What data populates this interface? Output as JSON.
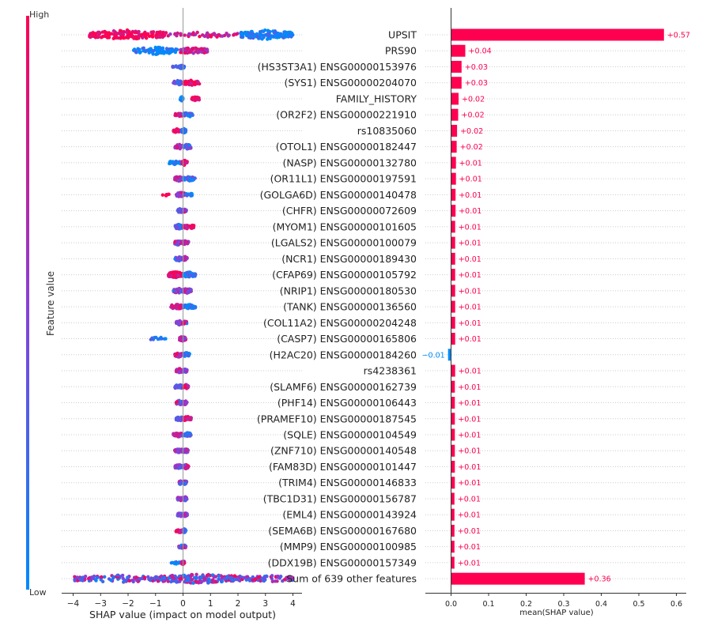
{
  "chart_data": [
    {
      "type": "scatter",
      "subtype": "shap-beeswarm",
      "xlabel": "SHAP value (impact on model output)",
      "xlim": [
        -4.4,
        4.4
      ],
      "xticks": [
        -4,
        -3,
        -2,
        -1,
        0,
        1,
        2,
        3,
        4
      ],
      "colorbar": {
        "label": "Feature value",
        "high_label": "High",
        "low_label": "Low",
        "high_color": "#ff0052",
        "low_color": "#008bfb"
      },
      "features": [
        {
          "name": "UPSIT",
          "clusters": [
            [
              -3.4,
              -0.6,
              160,
              1
            ],
            [
              -0.6,
              2.0,
              50,
              0.8
            ],
            [
              2.1,
              4.0,
              150,
              0.05
            ]
          ]
        },
        {
          "name": "PRS90",
          "clusters": [
            [
              -1.8,
              -0.2,
              80,
              0.05
            ],
            [
              -0.1,
              0.9,
              70,
              0.75
            ]
          ]
        },
        {
          "name": "(HS3ST3A1) ENSG00000153976",
          "clusters": [
            [
              -0.45,
              -0.2,
              6,
              0.1
            ],
            [
              -0.15,
              0.05,
              30,
              0.2
            ]
          ]
        },
        {
          "name": "(SYS1) ENSG00000204070",
          "clusters": [
            [
              -0.35,
              -0.05,
              40,
              0.35
            ],
            [
              0.0,
              0.6,
              45,
              0.95
            ]
          ]
        },
        {
          "name": "FAMILY_HISTORY",
          "clusters": [
            [
              -0.1,
              0.0,
              30,
              0.05
            ],
            [
              0.3,
              0.6,
              25,
              1
            ]
          ]
        },
        {
          "name": "(OR2F2) ENSG00000221910",
          "clusters": [
            [
              -0.3,
              0.0,
              20,
              0.8
            ],
            [
              0.0,
              0.35,
              40,
              0.2
            ]
          ]
        },
        {
          "name": "rs10835060",
          "clusters": [
            [
              -0.35,
              -0.1,
              20,
              0.95
            ],
            [
              -0.05,
              0.1,
              40,
              0.05
            ]
          ]
        },
        {
          "name": "(OTOL1) ENSG00000182447",
          "clusters": [
            [
              -0.3,
              0.0,
              40,
              0.7
            ],
            [
              0.0,
              0.3,
              40,
              0.3
            ]
          ]
        },
        {
          "name": "(NASP) ENSG00000132780",
          "clusters": [
            [
              -0.5,
              -0.05,
              25,
              0.05
            ],
            [
              -0.05,
              0.15,
              40,
              0.9
            ]
          ]
        },
        {
          "name": "(OR11L1) ENSG00000197591",
          "clusters": [
            [
              -0.3,
              0.0,
              40,
              0.6
            ],
            [
              0.0,
              0.45,
              40,
              0.2
            ]
          ]
        },
        {
          "name": "(GOLGA6D) ENSG00000140478",
          "clusters": [
            [
              -0.8,
              -0.5,
              6,
              1
            ],
            [
              -0.25,
              0.1,
              40,
              0.7
            ],
            [
              0.1,
              0.35,
              15,
              0.05
            ]
          ]
        },
        {
          "name": "(CHFR) ENSG00000072609",
          "clusters": [
            [
              -0.2,
              0.0,
              30,
              0.4
            ],
            [
              0.0,
              0.12,
              20,
              0.5
            ]
          ]
        },
        {
          "name": "(MYOM1) ENSG00000101605",
          "clusters": [
            [
              -0.3,
              0.0,
              40,
              0.3
            ],
            [
              0.0,
              0.4,
              40,
              0.9
            ]
          ]
        },
        {
          "name": "(LGALS2) ENSG00000100079",
          "clusters": [
            [
              -0.3,
              0.0,
              40,
              0.5
            ],
            [
              0.0,
              0.2,
              30,
              0.6
            ]
          ]
        },
        {
          "name": "(NCR1) ENSG00000189430",
          "clusters": [
            [
              -0.3,
              0.0,
              30,
              0.3
            ],
            [
              0.0,
              0.15,
              30,
              0.7
            ]
          ]
        },
        {
          "name": "(CFAP69) ENSG00000105792",
          "clusters": [
            [
              -0.55,
              0.0,
              60,
              0.85
            ],
            [
              0.0,
              0.45,
              50,
              0.15
            ]
          ]
        },
        {
          "name": "(NRIP1) ENSG00000180530",
          "clusters": [
            [
              -0.35,
              0.0,
              40,
              0.5
            ],
            [
              0.0,
              0.3,
              40,
              0.6
            ]
          ]
        },
        {
          "name": "(TANK) ENSG00000136560",
          "clusters": [
            [
              -0.45,
              0.0,
              50,
              0.85
            ],
            [
              0.0,
              0.45,
              40,
              0.15
            ]
          ]
        },
        {
          "name": "(COL11A2) ENSG00000204248",
          "clusters": [
            [
              -0.25,
              0.0,
              30,
              0.6
            ],
            [
              0.0,
              0.15,
              25,
              0.5
            ]
          ]
        },
        {
          "name": "(CASP7) ENSG00000165806",
          "clusters": [
            [
              -1.25,
              -0.6,
              14,
              0.05
            ],
            [
              -0.15,
              0.1,
              40,
              0.6
            ]
          ]
        },
        {
          "name": "(H2AC20) ENSG00000184260",
          "clusters": [
            [
              -0.3,
              0.0,
              35,
              0.8
            ],
            [
              0.0,
              0.25,
              35,
              0.2
            ]
          ]
        },
        {
          "name": "rs4238361",
          "clusters": [
            [
              -0.25,
              0.0,
              30,
              0.7
            ],
            [
              0.0,
              0.15,
              25,
              0.4
            ]
          ]
        },
        {
          "name": "(SLAMF6) ENSG00000162739",
          "clusters": [
            [
              -0.3,
              0.0,
              35,
              0.3
            ],
            [
              0.0,
              0.2,
              30,
              0.8
            ]
          ]
        },
        {
          "name": "(PHF14) ENSG00000106443",
          "clusters": [
            [
              -0.25,
              0.0,
              35,
              0.5
            ],
            [
              0.0,
              0.15,
              25,
              0.6
            ]
          ]
        },
        {
          "name": "(PRAMEF10) ENSG00000187545",
          "clusters": [
            [
              -0.25,
              0.0,
              30,
              0.3
            ],
            [
              0.0,
              0.3,
              35,
              0.9
            ]
          ]
        },
        {
          "name": "(SQLE) ENSG00000104549",
          "clusters": [
            [
              -0.35,
              0.0,
              35,
              0.8
            ],
            [
              0.0,
              0.3,
              35,
              0.2
            ]
          ]
        },
        {
          "name": "(ZNF710) ENSG00000140548",
          "clusters": [
            [
              -0.3,
              0.0,
              30,
              0.6
            ],
            [
              0.0,
              0.2,
              30,
              0.5
            ]
          ]
        },
        {
          "name": "(FAM83D) ENSG00000101447",
          "clusters": [
            [
              -0.3,
              0.0,
              30,
              0.4
            ],
            [
              0.0,
              0.2,
              30,
              0.7
            ]
          ]
        },
        {
          "name": "(TRIM4) ENSG00000146833",
          "clusters": [
            [
              -0.15,
              0.0,
              25,
              0.5
            ],
            [
              0.0,
              0.15,
              25,
              0.5
            ]
          ]
        },
        {
          "name": "(TBC1D31) ENSG00000156787",
          "clusters": [
            [
              -0.2,
              0.0,
              25,
              0.6
            ],
            [
              0.0,
              0.15,
              25,
              0.4
            ]
          ]
        },
        {
          "name": "(EML4) ENSG00000143924",
          "clusters": [
            [
              -0.2,
              0.0,
              25,
              0.4
            ],
            [
              0.0,
              0.15,
              25,
              0.6
            ]
          ]
        },
        {
          "name": "(SEMA6B) ENSG00000167680",
          "clusters": [
            [
              -0.25,
              0.0,
              25,
              0.8
            ],
            [
              0.0,
              0.1,
              25,
              0.2
            ]
          ]
        },
        {
          "name": "(MMP9) ENSG00000100985",
          "clusters": [
            [
              -0.15,
              0.0,
              20,
              0.5
            ],
            [
              0.0,
              0.1,
              20,
              0.5
            ]
          ]
        },
        {
          "name": "(DDX19B) ENSG00000157349",
          "clusters": [
            [
              -0.45,
              -0.1,
              10,
              0.05
            ],
            [
              -0.05,
              0.05,
              25,
              0.8
            ]
          ]
        },
        {
          "name": "Sum of 639 other features",
          "clusters": [
            [
              -4.0,
              -1.0,
              90,
              0.5
            ],
            [
              -1.0,
              2.2,
              200,
              0.5
            ],
            [
              2.2,
              4.0,
              70,
              0.5
            ]
          ]
        }
      ]
    },
    {
      "type": "bar",
      "orientation": "horizontal",
      "xlabel": "mean(SHAP value)",
      "xlim": [
        -0.03,
        0.62
      ],
      "xticks": [
        0.0,
        0.1,
        0.2,
        0.3,
        0.4,
        0.5,
        0.6
      ],
      "xtick_labels": [
        "0.0",
        "0.1",
        "0.2",
        "0.3",
        "0.4",
        "0.5",
        "0.6"
      ],
      "positive_color": "#ff0051",
      "negative_color": "#008bfb",
      "values": [
        0.57,
        0.04,
        0.03,
        0.03,
        0.02,
        0.02,
        0.02,
        0.02,
        0.01,
        0.01,
        0.01,
        0.01,
        0.01,
        0.01,
        0.01,
        0.01,
        0.01,
        0.01,
        0.01,
        0.01,
        -0.01,
        0.01,
        0.01,
        0.01,
        0.01,
        0.01,
        0.01,
        0.01,
        0.01,
        0.01,
        0.01,
        0.01,
        0.01,
        0.01,
        0.36
      ],
      "bar_lengths": [
        0.567,
        0.038,
        0.028,
        0.028,
        0.02,
        0.019,
        0.016,
        0.015,
        0.013,
        0.013,
        0.012,
        0.012,
        0.011,
        0.011,
        0.011,
        0.011,
        0.011,
        0.011,
        0.011,
        0.011,
        -0.008,
        0.011,
        0.01,
        0.01,
        0.01,
        0.01,
        0.01,
        0.01,
        0.01,
        0.009,
        0.009,
        0.009,
        0.009,
        0.009,
        0.356
      ],
      "value_labels": [
        "+0.57",
        "+0.04",
        "+0.03",
        "+0.03",
        "+0.02",
        "+0.02",
        "+0.02",
        "+0.02",
        "+0.01",
        "+0.01",
        "+0.01",
        "+0.01",
        "+0.01",
        "+0.01",
        "+0.01",
        "+0.01",
        "+0.01",
        "+0.01",
        "+0.01",
        "+0.01",
        "−0.01",
        "+0.01",
        "+0.01",
        "+0.01",
        "+0.01",
        "+0.01",
        "+0.01",
        "+0.01",
        "+0.01",
        "+0.01",
        "+0.01",
        "+0.01",
        "+0.01",
        "+0.01",
        "+0.36"
      ]
    }
  ]
}
